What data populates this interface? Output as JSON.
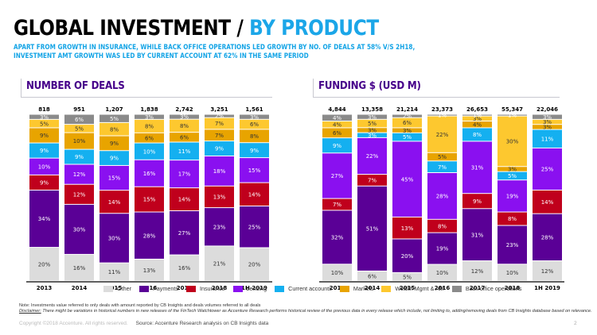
{
  "header": {
    "title_main": "GLOBAL INVESTMENT / ",
    "title_accent": "BY PRODUCT",
    "subtitle_line1": "APART FROM GROWTH IN INSURANCE, WHILE BACK OFFICE OPERATIONS LED GROWTH BY NO. OF DEALS AT 58% V/S 2H18,",
    "subtitle_line2": "INVESTMENT AMT GROWTH WAS LED BY CURRENT ACCOUNT AT 62% IN THE SAME PERIOD"
  },
  "colors": {
    "Other": "#dcdcdc",
    "Payments": "#5a0096",
    "Insurance": "#c0001c",
    "Lending": "#8a10f0",
    "Current accounts": "#14b0f0",
    "Markets": "#e8a400",
    "Wealth Mgmt & AM": "#fdc82f",
    "Back office operations": "#8a8a8a",
    "title_accent": "#1ba6e8",
    "section_title": "#46008a"
  },
  "legend": [
    {
      "label": "Other"
    },
    {
      "label": "Payments"
    },
    {
      "label": "Insurance"
    },
    {
      "label": "Lending"
    },
    {
      "label": "Current accounts"
    },
    {
      "label": "Markets"
    },
    {
      "label": "Wealth Mgmt & AM"
    },
    {
      "label": "Back office operations"
    }
  ],
  "chart_data": [
    {
      "type": "bar",
      "stacked": true,
      "title": "NUMBER OF DEALS",
      "categories": [
        "2013",
        "2014",
        "2015",
        "2016",
        "2017",
        "2018",
        "1H 2019"
      ],
      "totals": [
        "818",
        "951",
        "1,207",
        "1,838",
        "2,742",
        "3,251",
        "1,561"
      ],
      "ylim": [
        0,
        100
      ],
      "unit": "%",
      "series": [
        {
          "name": "Other",
          "values": [
            20,
            16,
            11,
            13,
            16,
            21,
            20
          ]
        },
        {
          "name": "Payments",
          "values": [
            34,
            30,
            30,
            28,
            27,
            23,
            25
          ]
        },
        {
          "name": "Insurance",
          "values": [
            9,
            12,
            14,
            15,
            14,
            13,
            14
          ]
        },
        {
          "name": "Lending",
          "values": [
            10,
            12,
            15,
            16,
            17,
            18,
            15
          ]
        },
        {
          "name": "Current accounts",
          "values": [
            9,
            9,
            9,
            10,
            11,
            9,
            9
          ]
        },
        {
          "name": "Markets",
          "values": [
            9,
            10,
            9,
            6,
            6,
            7,
            8
          ]
        },
        {
          "name": "Wealth Mgmt & AM",
          "values": [
            5,
            5,
            8,
            8,
            8,
            7,
            6
          ]
        },
        {
          "name": "Back office operations",
          "values": [
            3,
            6,
            5,
            3,
            3,
            2,
            3
          ]
        }
      ]
    },
    {
      "type": "bar",
      "stacked": true,
      "title": "FUNDING $ (USD M)",
      "categories": [
        "2013",
        "2014",
        "2015",
        "2016",
        "2017",
        "2018",
        "1H 2019"
      ],
      "totals": [
        "4,844",
        "13,358",
        "21,214",
        "23,373",
        "26,653",
        "55,347",
        "22,046"
      ],
      "ylim": [
        0,
        100
      ],
      "unit": "%",
      "series": [
        {
          "name": "Other",
          "values": [
            10,
            6,
            5,
            10,
            12,
            10,
            12
          ]
        },
        {
          "name": "Payments",
          "values": [
            32,
            51,
            20,
            19,
            31,
            23,
            28
          ]
        },
        {
          "name": "Insurance",
          "values": [
            7,
            7,
            13,
            8,
            9,
            8,
            14
          ]
        },
        {
          "name": "Lending",
          "values": [
            27,
            22,
            45,
            28,
            31,
            19,
            25
          ]
        },
        {
          "name": "Current accounts",
          "values": [
            9,
            3,
            5,
            7,
            8,
            5,
            11
          ]
        },
        {
          "name": "Markets",
          "values": [
            6,
            3,
            3,
            5,
            4,
            3,
            3
          ]
        },
        {
          "name": "Wealth Mgmt & AM",
          "values": [
            4,
            5,
            6,
            22,
            3,
            30,
            3
          ]
        },
        {
          "name": "Back office operations",
          "values": [
            4,
            3,
            2,
            1,
            1,
            1,
            3
          ]
        }
      ]
    }
  ],
  "footer": {
    "note": "Note: Investments value referred to only deals with amount reported by CB Insights and deals volumes referred to all deals",
    "disclaimer_label": "Disclaimer:",
    "disclaimer_text": " There might be variations in historical numbers in new releases of the FinTech Watchtower as Accenture Research performs historical review of the previous data in every release which include, not limiting to, adding/removing deals from CB Insights database based on relevance.",
    "copyright": "Copyright ©2018 Accenture. All rights reserved.",
    "source": "Source: Accenture Research analysis on CB Insights data",
    "page_number": "2"
  }
}
